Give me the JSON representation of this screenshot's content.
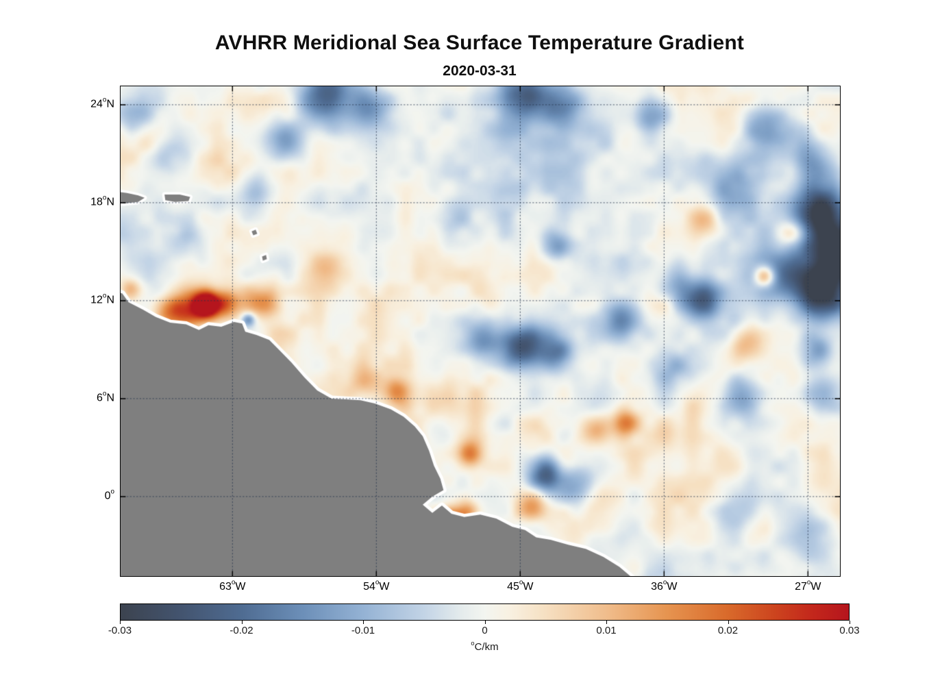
{
  "chart_data": {
    "type": "heatmap",
    "title": "AVHRR Meridional Sea Surface Temperature Gradient",
    "subtitle": "2020-03-31",
    "axis_degree_symbol": "o",
    "x_axis": {
      "ticks": [
        {
          "value": -63,
          "num": "63",
          "dir": "W"
        },
        {
          "value": -54,
          "num": "54",
          "dir": "W"
        },
        {
          "value": -45,
          "num": "45",
          "dir": "W"
        },
        {
          "value": -36,
          "num": "36",
          "dir": "W"
        },
        {
          "value": -27,
          "num": "27",
          "dir": "W"
        }
      ]
    },
    "y_axis": {
      "ticks": [
        {
          "value": 24,
          "num": "24",
          "dir": "N"
        },
        {
          "value": 18,
          "num": "18",
          "dir": "N"
        },
        {
          "value": 12,
          "num": "12",
          "dir": "N"
        },
        {
          "value": 6,
          "num": "6",
          "dir": "N"
        },
        {
          "value": 0,
          "num": "0",
          "dir": ""
        }
      ]
    },
    "extent": {
      "lon_min": -70.0,
      "lon_max": -25.0,
      "lat_min": -4.87,
      "lat_max": 25.13
    },
    "colorbar": {
      "min": -0.03,
      "max": 0.03,
      "ticks": [
        {
          "label": "-0.03",
          "value": -0.03
        },
        {
          "label": "-0.02",
          "value": -0.02
        },
        {
          "label": "-0.01",
          "value": -0.01
        },
        {
          "label": "0",
          "value": 0
        },
        {
          "label": "0.01",
          "value": 0.01
        },
        {
          "label": "0.02",
          "value": 0.02
        },
        {
          "label": "0.03",
          "value": 0.03
        }
      ],
      "label_sup": "o",
      "label_text": "C/km"
    },
    "colormap": [
      {
        "v": -0.03,
        "c": "#3c434f"
      },
      {
        "v": -0.025,
        "c": "#43546f"
      },
      {
        "v": -0.02,
        "c": "#4f6c92"
      },
      {
        "v": -0.015,
        "c": "#6c8fb8"
      },
      {
        "v": -0.01,
        "c": "#94b2d4"
      },
      {
        "v": -0.005,
        "c": "#c3d4e6"
      },
      {
        "v": -0.002,
        "c": "#e4ebec"
      },
      {
        "v": 0.0,
        "c": "#f3f5f0"
      },
      {
        "v": 0.002,
        "c": "#f8f1e2"
      },
      {
        "v": 0.005,
        "c": "#f6e0c2"
      },
      {
        "v": 0.01,
        "c": "#f0bd8c"
      },
      {
        "v": 0.015,
        "c": "#e69450"
      },
      {
        "v": 0.02,
        "c": "#d96a2b"
      },
      {
        "v": 0.024,
        "c": "#cc431e"
      },
      {
        "v": 0.027,
        "c": "#c3271c"
      },
      {
        "v": 0.03,
        "c": "#b5151d"
      }
    ],
    "land_color": "#7f7f7f",
    "coast_halo_color": "#ffffff",
    "grid_color": "#26344d",
    "frame_color": "#000000",
    "noise": {
      "scales": [
        {
          "deg": 5.0,
          "amp": 0.0028,
          "seed": 11
        },
        {
          "deg": 2.0,
          "amp": 0.0042,
          "seed": 29
        },
        {
          "deg": 0.9,
          "amp": 0.002,
          "seed": 53
        }
      ]
    },
    "ocean_features": [
      [
        -64.6,
        11.75,
        0.04,
        0.55
      ],
      [
        -65.6,
        11.5,
        0.02,
        0.8
      ],
      [
        -63.4,
        11.8,
        0.018,
        0.6
      ],
      [
        -66.9,
        11.2,
        0.014,
        0.7
      ],
      [
        -69.4,
        12.7,
        0.012,
        0.5
      ],
      [
        -61.0,
        11.9,
        0.014,
        0.7
      ],
      [
        -57.2,
        13.9,
        0.008,
        0.8
      ],
      [
        -52.8,
        6.4,
        0.015,
        0.6
      ],
      [
        -54.7,
        7.0,
        0.009,
        0.7
      ],
      [
        -48.1,
        2.6,
        0.017,
        0.55
      ],
      [
        -49.4,
        -1.5,
        0.026,
        0.6
      ],
      [
        -48.3,
        -0.95,
        0.014,
        0.5
      ],
      [
        -44.3,
        -0.6,
        0.012,
        0.7
      ],
      [
        -40.3,
        4.1,
        0.014,
        0.7
      ],
      [
        -38.4,
        4.5,
        0.016,
        0.6
      ],
      [
        -29.7,
        13.5,
        0.022,
        0.45
      ],
      [
        -28.0,
        16.1,
        0.012,
        0.6
      ],
      [
        -30.9,
        9.3,
        0.01,
        0.7
      ],
      [
        -47.5,
        12.3,
        0.007,
        0.9
      ],
      [
        -33.4,
        16.9,
        0.01,
        0.7
      ],
      [
        -52.2,
        3.4,
        0.008,
        0.6
      ],
      [
        -57.0,
        24.6,
        -0.024,
        1.3
      ],
      [
        -54.4,
        23.8,
        -0.013,
        1.0
      ],
      [
        -44.6,
        24.6,
        -0.021,
        1.0
      ],
      [
        -42.4,
        23.9,
        -0.012,
        0.9
      ],
      [
        -36.9,
        23.2,
        -0.013,
        0.8
      ],
      [
        -69.3,
        23.4,
        -0.012,
        1.0
      ],
      [
        -66.8,
        20.9,
        -0.009,
        0.9
      ],
      [
        -59.6,
        21.7,
        -0.011,
        0.9
      ],
      [
        -61.5,
        18.8,
        -0.008,
        0.7
      ],
      [
        -45.0,
        9.1,
        -0.024,
        0.9
      ],
      [
        -42.9,
        8.7,
        -0.016,
        0.8
      ],
      [
        -47.1,
        9.6,
        -0.012,
        0.8
      ],
      [
        -38.6,
        10.9,
        -0.016,
        0.9
      ],
      [
        -33.6,
        12.0,
        -0.018,
        0.9
      ],
      [
        -35.3,
        13.1,
        -0.011,
        0.9
      ],
      [
        -43.4,
        1.3,
        -0.022,
        0.8
      ],
      [
        -41.4,
        0.9,
        -0.013,
        0.8
      ],
      [
        -26.3,
        17.6,
        -0.026,
        1.1
      ],
      [
        -25.2,
        15.0,
        -0.024,
        1.4
      ],
      [
        -26.2,
        12.4,
        -0.026,
        1.1
      ],
      [
        -28.3,
        13.6,
        -0.014,
        1.0
      ],
      [
        -27.0,
        20.5,
        -0.013,
        1.0
      ],
      [
        -29.6,
        22.6,
        -0.011,
        1.0
      ],
      [
        -31.5,
        19.4,
        -0.011,
        1.1
      ],
      [
        -42.8,
        15.3,
        -0.013,
        0.7
      ],
      [
        -49.0,
        17.0,
        -0.007,
        0.9
      ],
      [
        -55.6,
        3.3,
        -0.009,
        0.8
      ],
      [
        -31.0,
        6.1,
        -0.013,
        0.9
      ],
      [
        -26.5,
        9.0,
        -0.013,
        0.8
      ],
      [
        -26.0,
        6.3,
        -0.011,
        0.8
      ],
      [
        -35.5,
        7.8,
        -0.009,
        0.9
      ],
      [
        -66.0,
        15.0,
        -0.007,
        1.2
      ],
      [
        -60.0,
        14.2,
        -0.007,
        0.8
      ],
      [
        -62.0,
        10.85,
        -0.016,
        0.3
      ],
      [
        -27.2,
        -2.4,
        -0.009,
        1.2
      ],
      [
        -31.5,
        -1.0,
        -0.007,
        1.0
      ],
      [
        -28.5,
        15.2,
        -0.006,
        4.5
      ],
      [
        -45.0,
        22.5,
        -0.004,
        4.0
      ],
      [
        -58.0,
        10.0,
        0.0035,
        3.0
      ],
      [
        -44.0,
        3.0,
        0.0035,
        3.0
      ]
    ],
    "land_polygons": {
      "coastline": [
        [
          -70.6,
          12.55
        ],
        [
          -69.9,
          12.45
        ],
        [
          -69.5,
          11.9
        ],
        [
          -68.6,
          11.45
        ],
        [
          -67.8,
          11.0
        ],
        [
          -66.9,
          10.65
        ],
        [
          -65.9,
          10.55
        ],
        [
          -65.1,
          10.2
        ],
        [
          -64.5,
          10.5
        ],
        [
          -63.7,
          10.4
        ],
        [
          -62.9,
          10.7
        ],
        [
          -62.4,
          10.6
        ],
        [
          -62.2,
          10.1
        ],
        [
          -61.5,
          9.9
        ],
        [
          -60.7,
          9.6
        ],
        [
          -60.0,
          8.9
        ],
        [
          -59.3,
          8.2
        ],
        [
          -58.5,
          7.3
        ],
        [
          -57.7,
          6.5
        ],
        [
          -56.8,
          6.0
        ],
        [
          -55.9,
          5.95
        ],
        [
          -55.0,
          5.9
        ],
        [
          -54.1,
          5.7
        ],
        [
          -53.1,
          5.35
        ],
        [
          -52.3,
          4.9
        ],
        [
          -51.6,
          4.3
        ],
        [
          -51.1,
          3.7
        ],
        [
          -50.7,
          2.8
        ],
        [
          -50.4,
          1.9
        ],
        [
          -50.0,
          1.1
        ],
        [
          -49.8,
          0.4
        ],
        [
          -50.5,
          0.0
        ],
        [
          -51.1,
          -0.5
        ],
        [
          -50.5,
          -1.0
        ],
        [
          -49.9,
          -0.55
        ],
        [
          -49.3,
          -1.05
        ],
        [
          -48.5,
          -1.25
        ],
        [
          -47.5,
          -1.1
        ],
        [
          -46.5,
          -1.35
        ],
        [
          -45.5,
          -1.85
        ],
        [
          -44.7,
          -2.05
        ],
        [
          -44.0,
          -2.5
        ],
        [
          -43.1,
          -2.65
        ],
        [
          -42.0,
          -2.95
        ],
        [
          -40.9,
          -3.2
        ],
        [
          -39.8,
          -3.7
        ],
        [
          -38.8,
          -4.3
        ],
        [
          -37.6,
          -5.3
        ]
      ],
      "mainland_close": [
        [
          -71.0,
          -6.0
        ],
        [
          -71.0,
          12.55
        ]
      ],
      "islands": [
        [
          [
            -70.8,
            18.75
          ],
          [
            -69.6,
            18.6
          ],
          [
            -68.9,
            18.45
          ],
          [
            -68.5,
            18.3
          ],
          [
            -68.9,
            18.05
          ],
          [
            -69.8,
            17.95
          ],
          [
            -70.8,
            18.05
          ]
        ],
        [
          [
            -67.25,
            18.5
          ],
          [
            -66.3,
            18.5
          ],
          [
            -65.65,
            18.35
          ],
          [
            -65.75,
            18.1
          ],
          [
            -66.6,
            18.05
          ],
          [
            -67.2,
            18.15
          ]
        ],
        [
          [
            -61.8,
            16.25
          ],
          [
            -61.55,
            16.35
          ],
          [
            -61.45,
            16.1
          ],
          [
            -61.7,
            16.0
          ]
        ],
        [
          [
            -61.15,
            14.7
          ],
          [
            -60.9,
            14.8
          ],
          [
            -60.85,
            14.55
          ],
          [
            -61.1,
            14.45
          ]
        ]
      ]
    }
  }
}
